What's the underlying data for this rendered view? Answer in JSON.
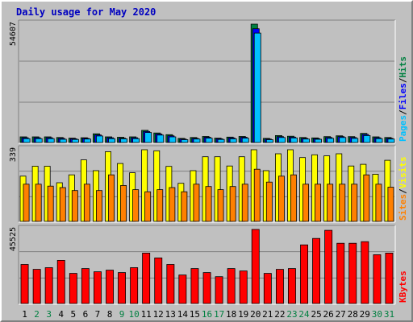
{
  "chart_data": [
    {
      "type": "bar",
      "title": "Daily usage for May 2020",
      "ymax_label": "54607",
      "ylim": [
        0,
        54607
      ],
      "legend_right": [
        {
          "text": "Pages",
          "color": "#00c0ff"
        },
        {
          "text": "/",
          "color": "#000000"
        },
        {
          "text": "Files",
          "color": "#0000ff"
        },
        {
          "text": "/",
          "color": "#000000"
        },
        {
          "text": "Hits",
          "color": "#008040"
        }
      ],
      "categories": [
        "1",
        "2",
        "3",
        "4",
        "5",
        "6",
        "7",
        "8",
        "9",
        "10",
        "11",
        "12",
        "13",
        "14",
        "15",
        "16",
        "17",
        "18",
        "19",
        "20",
        "21",
        "22",
        "23",
        "24",
        "25",
        "26",
        "27",
        "28",
        "29",
        "30",
        "31"
      ],
      "weekend_days": [
        "2",
        "3",
        "9",
        "10",
        "16",
        "17",
        "23",
        "24",
        "30",
        "31"
      ],
      "series": [
        {
          "name": "Hits",
          "color": "#008040",
          "values": [
            2600,
            2600,
            2600,
            2300,
            2000,
            2200,
            4000,
            2600,
            2400,
            2600,
            5600,
            4400,
            3600,
            1900,
            2300,
            2800,
            2000,
            2500,
            2800,
            54607,
            1900,
            3200,
            2900,
            2300,
            2100,
            2700,
            3100,
            2700,
            4200,
            2600,
            2300
          ]
        },
        {
          "name": "Files",
          "color": "#0000ff",
          "values": [
            2200,
            2200,
            2200,
            1900,
            1700,
            1900,
            3500,
            2200,
            2000,
            2200,
            5100,
            3900,
            3100,
            1600,
            1900,
            2400,
            1700,
            2100,
            2400,
            52500,
            1600,
            2700,
            2500,
            1900,
            1800,
            2300,
            2700,
            2300,
            3700,
            2200,
            1900
          ]
        },
        {
          "name": "Pages",
          "color": "#00c0ff",
          "values": [
            1800,
            1800,
            1800,
            1500,
            1400,
            1600,
            3000,
            1800,
            1700,
            1800,
            4600,
            3400,
            2600,
            1300,
            1600,
            2000,
            1400,
            1700,
            2000,
            50500,
            1300,
            2300,
            2100,
            1600,
            1500,
            1900,
            2300,
            1900,
            3200,
            1800,
            1600
          ]
        }
      ]
    },
    {
      "type": "bar",
      "ymax_label": "339",
      "ylim": [
        0,
        339
      ],
      "legend_right": [
        {
          "text": "Sites",
          "color": "#ff8000"
        },
        {
          "text": "/",
          "color": "#000000"
        },
        {
          "text": "Visits",
          "color": "#ffff00"
        }
      ],
      "categories": [
        "1",
        "2",
        "3",
        "4",
        "5",
        "6",
        "7",
        "8",
        "9",
        "10",
        "11",
        "12",
        "13",
        "14",
        "15",
        "16",
        "17",
        "18",
        "19",
        "20",
        "21",
        "22",
        "23",
        "24",
        "25",
        "26",
        "27",
        "28",
        "29",
        "30",
        "31"
      ],
      "series": [
        {
          "name": "Visits",
          "color": "#ffff00",
          "values": [
            214,
            261,
            261,
            183,
            220,
            291,
            240,
            330,
            274,
            230,
            339,
            334,
            260,
            180,
            240,
            306,
            306,
            262,
            306,
            339,
            240,
            320,
            339,
            302,
            315,
            310,
            320,
            262,
            270,
            223,
            289
          ]
        },
        {
          "name": "Sites",
          "color": "#ff8000",
          "values": [
            176,
            176,
            167,
            160,
            146,
            176,
            146,
            220,
            170,
            150,
            140,
            150,
            160,
            140,
            176,
            165,
            150,
            165,
            176,
            247,
            186,
            214,
            220,
            176,
            176,
            176,
            176,
            176,
            220,
            176,
            162
          ]
        }
      ]
    },
    {
      "type": "bar",
      "ymax_label": "45525",
      "ylim": [
        0,
        45525
      ],
      "legend_right": [
        {
          "text": "KBytes",
          "color": "#ff0000"
        }
      ],
      "categories": [
        "1",
        "2",
        "3",
        "4",
        "5",
        "6",
        "7",
        "8",
        "9",
        "10",
        "11",
        "12",
        "13",
        "14",
        "15",
        "16",
        "17",
        "18",
        "19",
        "20",
        "21",
        "22",
        "23",
        "24",
        "25",
        "26",
        "27",
        "28",
        "29",
        "30",
        "31"
      ],
      "series": [
        {
          "name": "KBytes",
          "color": "#ff0000",
          "values": [
            24000,
            21000,
            22000,
            26500,
            18500,
            21500,
            19500,
            20500,
            19000,
            22000,
            31000,
            28000,
            24000,
            17500,
            21500,
            19000,
            16500,
            21500,
            20000,
            45525,
            18500,
            21000,
            21500,
            36000,
            40000,
            45000,
            37000,
            37000,
            38000,
            30000,
            31000
          ]
        }
      ]
    }
  ]
}
